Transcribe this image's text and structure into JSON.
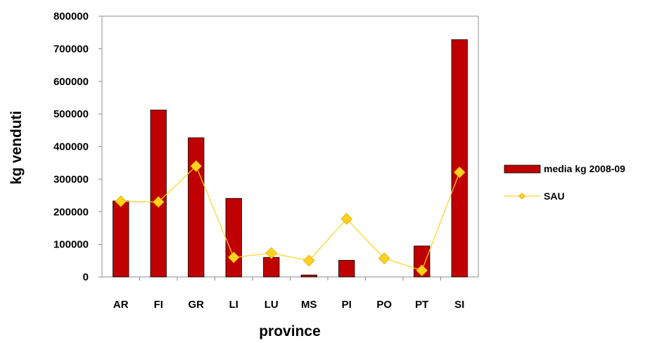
{
  "chart_data": {
    "type": "bar",
    "title": "",
    "xlabel": "province",
    "ylabel": "kg venduti",
    "ylim": [
      0,
      800000
    ],
    "yticks": [
      0,
      100000,
      200000,
      300000,
      400000,
      500000,
      600000,
      700000,
      800000
    ],
    "categories": [
      "AR",
      "FI",
      "GR",
      "LI",
      "LU",
      "MS",
      "PI",
      "PO",
      "PT",
      "SI"
    ],
    "grid": false,
    "legend_position": "right",
    "series": [
      {
        "name": "media kg 2008-09",
        "type": "bar",
        "color": "#C00000",
        "values": [
          233000,
          512000,
          427000,
          241000,
          60000,
          6000,
          51000,
          0,
          95000,
          728000
        ]
      },
      {
        "name": "SAU",
        "type": "line",
        "color": "#FFD21F",
        "marker": "diamond",
        "values": [
          232000,
          230000,
          340000,
          60000,
          73000,
          50000,
          178000,
          57000,
          20000,
          321000
        ]
      }
    ]
  }
}
